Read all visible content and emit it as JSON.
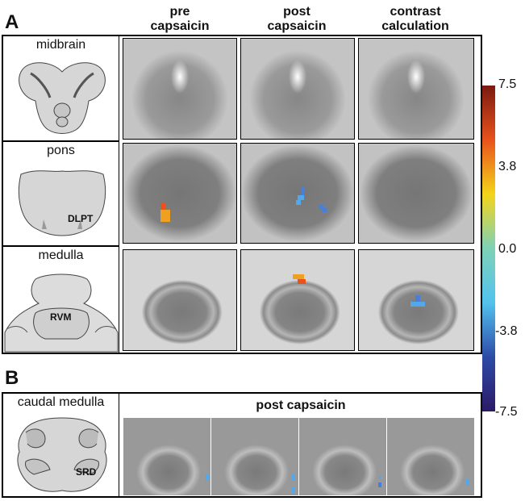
{
  "figure": {
    "panel_a_letter": "A",
    "panel_b_letter": "B",
    "columns": [
      "pre\ncapsaicin",
      "post\ncapsaicin",
      "contrast\ncalculation"
    ],
    "rows": [
      {
        "label": "midbrain",
        "region": ""
      },
      {
        "label": "pons",
        "region": "DLPT"
      },
      {
        "label": "medulla",
        "region": "RVM"
      }
    ],
    "panel_b": {
      "row_label": "caudal medulla",
      "region": "SRD",
      "header": "post capsaicin"
    },
    "colorbar": {
      "ticks": [
        "7.5",
        "3.8",
        "0.0",
        "-3.8",
        "-7.5"
      ],
      "colors": [
        "#7a1a10",
        "#e8521c",
        "#f4d41a",
        "#7ed2b8",
        "#52c2ee",
        "#2d4aa8",
        "#2c1a66"
      ]
    }
  }
}
